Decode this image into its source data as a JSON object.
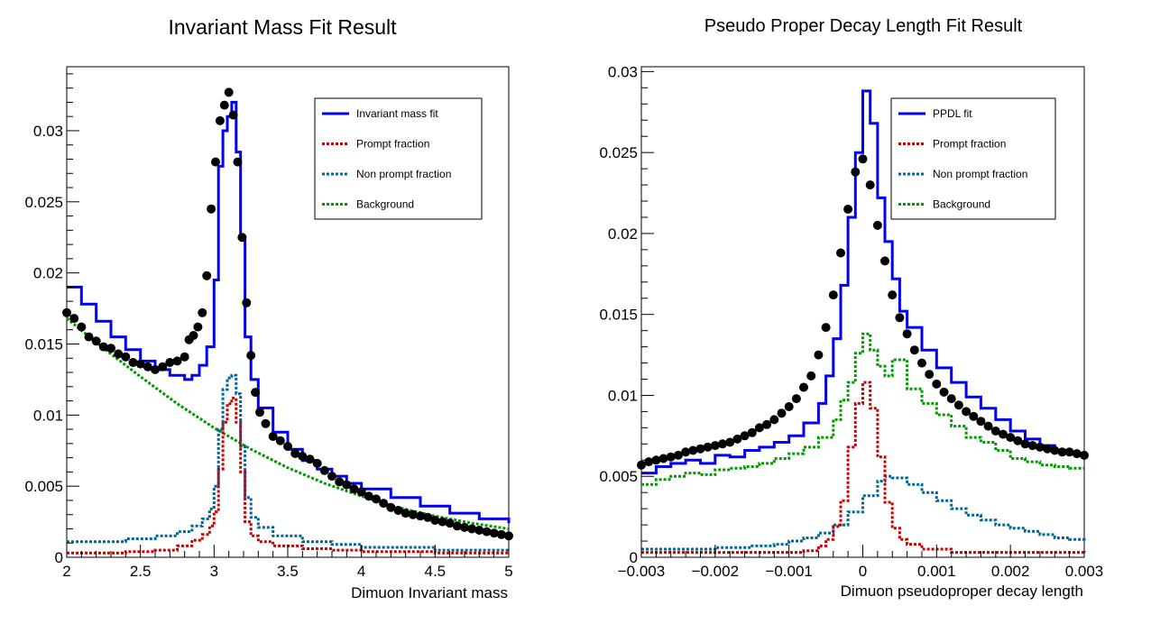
{
  "colors": {
    "fit": "#0000ee",
    "prompt": "#cc0000",
    "nonprompt": "#006699",
    "background": "#009900",
    "data": "#000000"
  },
  "chart_data": [
    {
      "type": "line",
      "title": "Invariant Mass Fit Result",
      "xlabel": "Dimuon Invariant mass",
      "ylabel": "",
      "xlim": [
        2,
        5
      ],
      "ylim": [
        0,
        0.0345
      ],
      "xticks": [
        "2",
        "2.5",
        "3",
        "3.5",
        "4",
        "4.5",
        "5"
      ],
      "yticks": [
        "0",
        "0.005",
        "0.01",
        "0.015",
        "0.02",
        "0.025",
        "0.03"
      ],
      "legend_position": "top-right",
      "legend": [
        "Invariant mass fit",
        "Prompt fraction",
        "Non prompt fraction",
        "Background"
      ],
      "grid": false,
      "series": [
        {
          "name": "Invariant mass fit",
          "style": "solid-step",
          "x": [
            2.0,
            2.1,
            2.2,
            2.3,
            2.4,
            2.5,
            2.6,
            2.7,
            2.8,
            2.85,
            2.9,
            2.95,
            3.0,
            3.03,
            3.06,
            3.09,
            3.12,
            3.15,
            3.18,
            3.21,
            3.25,
            3.3,
            3.4,
            3.5,
            3.6,
            3.7,
            3.8,
            3.9,
            4.0,
            4.2,
            4.4,
            4.6,
            4.8,
            5.0
          ],
          "y": [
            0.019,
            0.0178,
            0.0166,
            0.0155,
            0.0146,
            0.0138,
            0.0132,
            0.0128,
            0.0125,
            0.0128,
            0.0135,
            0.0148,
            0.0195,
            0.0275,
            0.03,
            0.031,
            0.032,
            0.0285,
            0.0225,
            0.0155,
            0.0125,
            0.0105,
            0.0088,
            0.0076,
            0.0068,
            0.0062,
            0.0057,
            0.0052,
            0.0048,
            0.0042,
            0.0036,
            0.0031,
            0.0027,
            0.0024
          ]
        },
        {
          "name": "Prompt fraction",
          "style": "dotted-step",
          "x": [
            2.0,
            2.4,
            2.6,
            2.75,
            2.85,
            2.92,
            2.97,
            3.0,
            3.03,
            3.06,
            3.09,
            3.12,
            3.15,
            3.18,
            3.21,
            3.25,
            3.3,
            3.4,
            3.6,
            3.8,
            4.0,
            4.5,
            5.0
          ],
          "y": [
            0.0003,
            0.0004,
            0.0005,
            0.0008,
            0.0012,
            0.0016,
            0.0022,
            0.0032,
            0.0062,
            0.0095,
            0.0108,
            0.0112,
            0.0095,
            0.006,
            0.0025,
            0.0015,
            0.0011,
            0.0008,
            0.0006,
            0.0005,
            0.0004,
            0.0003,
            0.0003
          ]
        },
        {
          "name": "Non prompt fraction",
          "style": "dotted-step",
          "x": [
            2.0,
            2.4,
            2.6,
            2.75,
            2.85,
            2.92,
            2.97,
            3.0,
            3.03,
            3.06,
            3.09,
            3.12,
            3.15,
            3.18,
            3.21,
            3.25,
            3.3,
            3.4,
            3.6,
            3.8,
            4.0,
            4.5,
            5.0
          ],
          "y": [
            0.0011,
            0.0013,
            0.0015,
            0.0018,
            0.0022,
            0.0027,
            0.0034,
            0.005,
            0.009,
            0.0118,
            0.0126,
            0.0128,
            0.0115,
            0.0078,
            0.0042,
            0.0028,
            0.0021,
            0.0015,
            0.0011,
            0.0009,
            0.0007,
            0.0005,
            0.0004
          ]
        },
        {
          "name": "Background",
          "style": "dotted",
          "x": [
            2.0,
            2.25,
            2.5,
            2.75,
            3.0,
            3.25,
            3.5,
            3.75,
            4.0,
            4.25,
            4.5,
            4.75,
            5.0
          ],
          "y": [
            0.0168,
            0.0147,
            0.0127,
            0.0108,
            0.0091,
            0.0076,
            0.0063,
            0.0052,
            0.0043,
            0.0035,
            0.0029,
            0.0024,
            0.002
          ]
        },
        {
          "name": "data",
          "style": "markers",
          "x": [
            2.0,
            2.05,
            2.1,
            2.15,
            2.2,
            2.25,
            2.3,
            2.35,
            2.4,
            2.45,
            2.5,
            2.55,
            2.6,
            2.65,
            2.7,
            2.75,
            2.8,
            2.83,
            2.86,
            2.89,
            2.92,
            2.95,
            2.98,
            3.01,
            3.04,
            3.07,
            3.1,
            3.13,
            3.16,
            3.19,
            3.22,
            3.25,
            3.28,
            3.31,
            3.35,
            3.4,
            3.45,
            3.5,
            3.55,
            3.6,
            3.65,
            3.7,
            3.75,
            3.8,
            3.85,
            3.9,
            3.95,
            4.0,
            4.05,
            4.1,
            4.15,
            4.2,
            4.25,
            4.3,
            4.35,
            4.4,
            4.45,
            4.5,
            4.55,
            4.6,
            4.65,
            4.7,
            4.75,
            4.8,
            4.85,
            4.9,
            4.95,
            5.0
          ],
          "y": [
            0.0172,
            0.0168,
            0.0162,
            0.0155,
            0.0152,
            0.0148,
            0.0147,
            0.0143,
            0.0141,
            0.0137,
            0.0136,
            0.0134,
            0.0132,
            0.0134,
            0.0137,
            0.0138,
            0.0141,
            0.0153,
            0.0156,
            0.0162,
            0.0172,
            0.0198,
            0.0245,
            0.0278,
            0.0307,
            0.0318,
            0.0327,
            0.0311,
            0.0278,
            0.0225,
            0.0179,
            0.0142,
            0.0116,
            0.0102,
            0.0094,
            0.0085,
            0.0082,
            0.0078,
            0.0073,
            0.0071,
            0.0069,
            0.0066,
            0.0061,
            0.0057,
            0.0053,
            0.0051,
            0.0048,
            0.0046,
            0.0043,
            0.0041,
            0.0038,
            0.0035,
            0.0033,
            0.0031,
            0.003,
            0.0029,
            0.0028,
            0.0026,
            0.0025,
            0.0024,
            0.0022,
            0.0021,
            0.002,
            0.0019,
            0.0018,
            0.0017,
            0.0016,
            0.0015
          ]
        }
      ]
    },
    {
      "type": "line",
      "title": "Pseudo Proper Decay Length Fit Result",
      "xlabel": "Dimuon pseudoproper decay length",
      "ylabel": "",
      "xlim": [
        -0.003,
        0.003
      ],
      "ylim": [
        0,
        0.0303
      ],
      "xticks": [
        "−0.003",
        "−0.002",
        "−0.001",
        "0",
        "0.001",
        "0.002",
        "0.003"
      ],
      "yticks": [
        "0",
        "0.005",
        "0.01",
        "0.015",
        "0.02",
        "0.025",
        "0.03"
      ],
      "legend_position": "top-right",
      "legend": [
        "PPDL fit",
        "Prompt fraction",
        "Non prompt fraction",
        "Background"
      ],
      "grid": false,
      "series": [
        {
          "name": "PPDL fit",
          "style": "solid-step",
          "x": [
            -0.003,
            -0.0028,
            -0.0026,
            -0.0024,
            -0.0022,
            -0.002,
            -0.0018,
            -0.0016,
            -0.0014,
            -0.0012,
            -0.001,
            -0.0008,
            -0.0006,
            -0.0005,
            -0.0004,
            -0.0003,
            -0.0002,
            -0.0001,
            0.0,
            0.0001,
            0.0002,
            0.0003,
            0.0004,
            0.0005,
            0.0006,
            0.0008,
            0.001,
            0.0012,
            0.0014,
            0.0016,
            0.0018,
            0.002,
            0.0022,
            0.0024,
            0.0026,
            0.0028,
            0.003
          ],
          "y": [
            0.0052,
            0.0056,
            0.0058,
            0.006,
            0.0058,
            0.0063,
            0.0062,
            0.0066,
            0.0068,
            0.0071,
            0.0075,
            0.0083,
            0.0095,
            0.0112,
            0.0135,
            0.0168,
            0.021,
            0.025,
            0.0288,
            0.0268,
            0.0222,
            0.0195,
            0.0172,
            0.0152,
            0.0142,
            0.0128,
            0.0117,
            0.0108,
            0.0099,
            0.0092,
            0.0085,
            0.0078,
            0.0073,
            0.0069,
            0.0066,
            0.0064,
            0.0063
          ]
        },
        {
          "name": "Prompt fraction",
          "style": "dotted-step",
          "x": [
            -0.003,
            -0.002,
            -0.0012,
            -0.0008,
            -0.0006,
            -0.0005,
            -0.0004,
            -0.0003,
            -0.0002,
            -0.0001,
            0.0,
            0.0001,
            0.0002,
            0.0003,
            0.0004,
            0.0005,
            0.0006,
            0.0008,
            0.0012,
            0.002,
            0.003
          ],
          "y": [
            0.0003,
            0.0003,
            0.0003,
            0.0004,
            0.0007,
            0.0011,
            0.0019,
            0.0035,
            0.0068,
            0.0095,
            0.0108,
            0.0092,
            0.0062,
            0.0034,
            0.0018,
            0.0011,
            0.0008,
            0.0005,
            0.0003,
            0.0003,
            0.0002
          ]
        },
        {
          "name": "Non prompt fraction",
          "style": "dotted-step",
          "x": [
            -0.003,
            -0.0025,
            -0.002,
            -0.0015,
            -0.0012,
            -0.001,
            -0.0008,
            -0.0006,
            -0.0004,
            -0.0002,
            0.0,
            0.0002,
            0.0003,
            0.0004,
            0.0006,
            0.0008,
            0.001,
            0.0012,
            0.0014,
            0.0016,
            0.0018,
            0.002,
            0.0022,
            0.0024,
            0.0026,
            0.0028,
            0.003
          ],
          "y": [
            0.0005,
            0.0005,
            0.0006,
            0.0007,
            0.0008,
            0.001,
            0.0012,
            0.0015,
            0.002,
            0.0028,
            0.0038,
            0.0047,
            0.005,
            0.0049,
            0.0045,
            0.004,
            0.0035,
            0.003,
            0.0026,
            0.0023,
            0.002,
            0.0018,
            0.0016,
            0.0014,
            0.0012,
            0.0011,
            0.001
          ]
        },
        {
          "name": "Background",
          "style": "dotted-step",
          "x": [
            -0.003,
            -0.0028,
            -0.0026,
            -0.0024,
            -0.0022,
            -0.002,
            -0.0018,
            -0.0016,
            -0.0014,
            -0.0012,
            -0.001,
            -0.0008,
            -0.0006,
            -0.0004,
            -0.0003,
            -0.0002,
            -0.0001,
            0.0,
            0.0001,
            0.0002,
            0.0003,
            0.0004,
            0.0006,
            0.0008,
            0.001,
            0.0012,
            0.0014,
            0.0016,
            0.0018,
            0.002,
            0.0022,
            0.0024,
            0.0026,
            0.0028,
            0.003
          ],
          "y": [
            0.0045,
            0.0048,
            0.005,
            0.0052,
            0.0051,
            0.0054,
            0.0055,
            0.0056,
            0.0058,
            0.0061,
            0.0064,
            0.0068,
            0.0074,
            0.0085,
            0.0097,
            0.0108,
            0.0126,
            0.0138,
            0.0128,
            0.0118,
            0.0112,
            0.0122,
            0.0104,
            0.0095,
            0.0088,
            0.0081,
            0.0074,
            0.0071,
            0.0066,
            0.0061,
            0.0059,
            0.0057,
            0.0056,
            0.0055,
            0.0055
          ]
        },
        {
          "name": "data",
          "style": "markers",
          "x": [
            -0.003,
            -0.0029,
            -0.0028,
            -0.0027,
            -0.0026,
            -0.0025,
            -0.0024,
            -0.0023,
            -0.0022,
            -0.0021,
            -0.002,
            -0.0019,
            -0.0018,
            -0.0017,
            -0.0016,
            -0.0015,
            -0.0014,
            -0.0013,
            -0.0012,
            -0.0011,
            -0.001,
            -0.0009,
            -0.0008,
            -0.0007,
            -0.0006,
            -0.0005,
            -0.0004,
            -0.0003,
            -0.0002,
            -0.0001,
            0.0,
            0.0001,
            0.0002,
            0.0003,
            0.0004,
            0.0005,
            0.0006,
            0.0007,
            0.0008,
            0.0009,
            0.001,
            0.0011,
            0.0012,
            0.0013,
            0.0014,
            0.0015,
            0.0016,
            0.0017,
            0.0018,
            0.0019,
            0.002,
            0.0021,
            0.0022,
            0.0023,
            0.0024,
            0.0025,
            0.0026,
            0.0027,
            0.0028,
            0.0029,
            0.003
          ],
          "y": [
            0.0057,
            0.0059,
            0.006,
            0.0061,
            0.0062,
            0.0063,
            0.0065,
            0.0066,
            0.0067,
            0.0068,
            0.0069,
            0.007,
            0.0071,
            0.0073,
            0.0075,
            0.0077,
            0.008,
            0.0082,
            0.0085,
            0.0089,
            0.0093,
            0.0098,
            0.0105,
            0.0112,
            0.0125,
            0.0142,
            0.0162,
            0.0188,
            0.0215,
            0.0238,
            0.0246,
            0.023,
            0.0205,
            0.0183,
            0.0162,
            0.0148,
            0.0138,
            0.0128,
            0.012,
            0.0113,
            0.0107,
            0.0102,
            0.0098,
            0.0094,
            0.009,
            0.0087,
            0.0084,
            0.0081,
            0.0078,
            0.0076,
            0.0074,
            0.0072,
            0.007,
            0.0069,
            0.0068,
            0.0067,
            0.0066,
            0.0065,
            0.0065,
            0.0064,
            0.0063
          ]
        }
      ]
    }
  ]
}
